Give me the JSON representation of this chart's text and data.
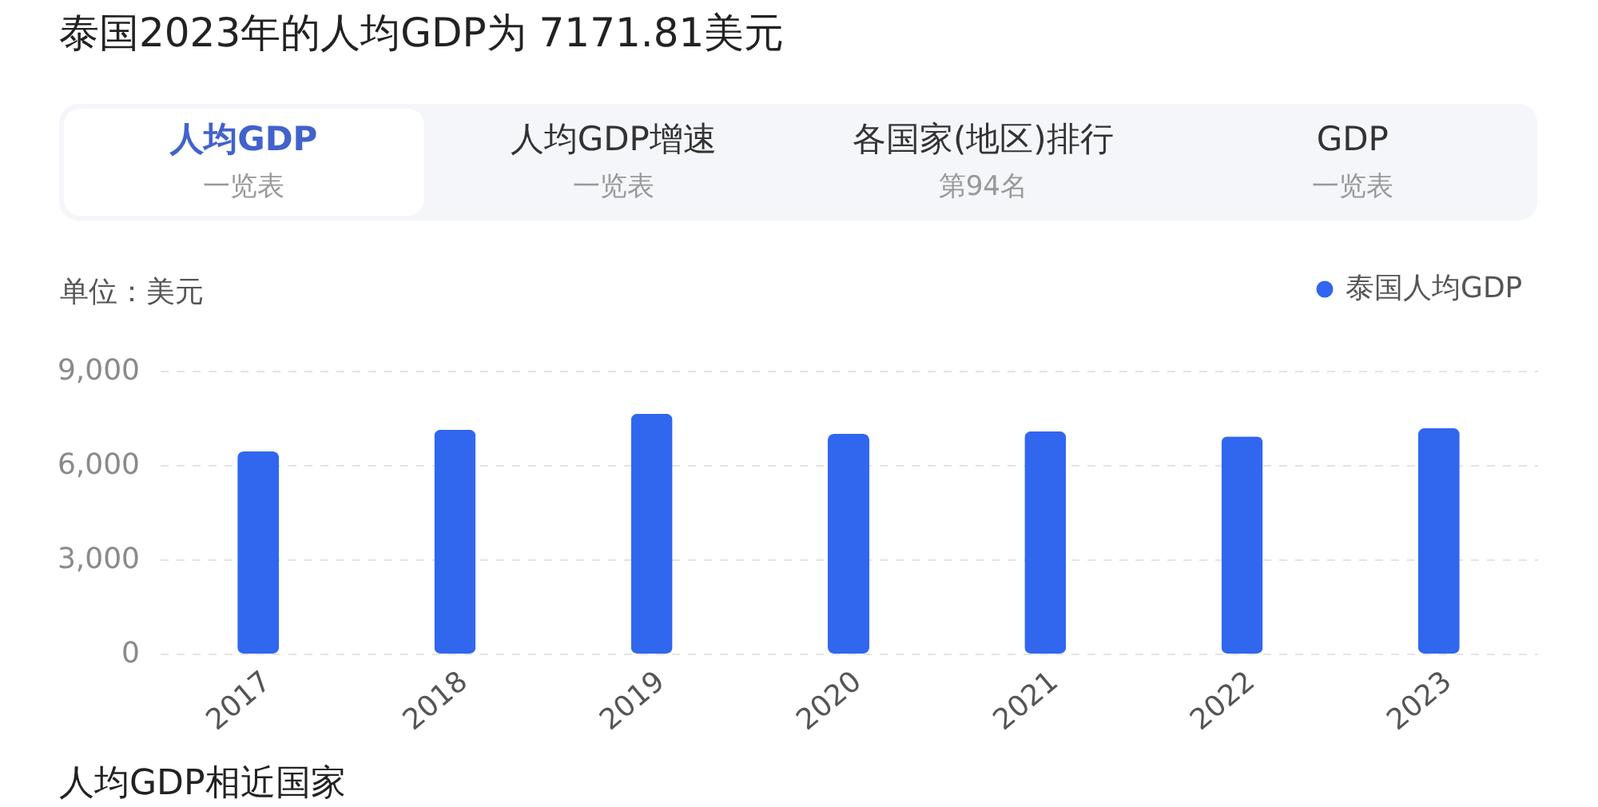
{
  "chart_data": {
    "type": "bar",
    "title": "泰国2023年的人均GDP为 7171.81美元",
    "ylabel": "单位：美元",
    "annotations": [
      "人均GDP",
      "一览表",
      "人均GDP增速",
      "一览表",
      "各国家(地区)排行",
      "第94名",
      "GDP",
      "一览表",
      "人均GDP相近国家"
    ],
    "categories": [
      "2017",
      "2018",
      "2019",
      "2020",
      "2021",
      "2022",
      "2023"
    ],
    "series": [
      {
        "name": "泰国人均GDP",
        "color": "#3166ef",
        "values": [
          6430,
          7120,
          7630,
          6990,
          7070,
          6910,
          7170
        ]
      }
    ],
    "ylim": [
      0,
      9000
    ],
    "yticks": [
      0,
      {
        "value": 3000,
        "label": "3,000"
      },
      {
        "value": 6000,
        "label": "6,000"
      },
      {
        "value": 9000,
        "label": "9,000"
      }
    ],
    "grid": "y",
    "legend": "top right"
  }
}
